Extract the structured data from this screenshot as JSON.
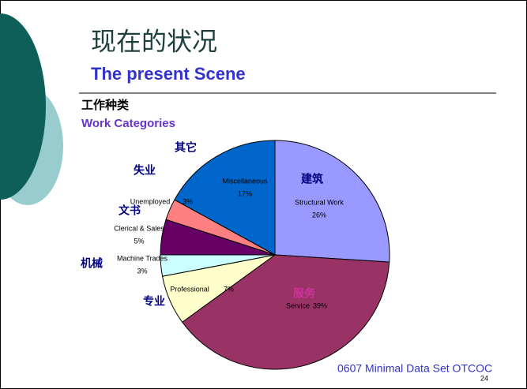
{
  "chart_data": {
    "type": "pie",
    "title": "现在的状况",
    "subtitle": "The present Scene",
    "section_title": "工作种类",
    "section_subtitle": "Work Categories",
    "categories": [
      "Structural Work",
      "Service",
      "Professional",
      "Machine Trades",
      "Clerical & Sales",
      "Unemployed",
      "Miscellaneous"
    ],
    "categories_zh": [
      "建筑",
      "服务",
      "专业",
      "机械",
      "文书",
      "失业",
      "其它"
    ],
    "values": [
      26,
      39,
      7,
      3,
      5,
      3,
      17
    ],
    "value_labels": [
      "26%",
      "39%",
      "7%",
      "3%",
      "5%",
      "3%",
      "17%"
    ],
    "colors": [
      "#9999ff",
      "#993366",
      "#ffffcc",
      "#ccffff",
      "#660066",
      "#ff8080",
      "#0066cc"
    ],
    "footer": "0607 Minimal Data Set OTCOC",
    "page_number": "24"
  }
}
